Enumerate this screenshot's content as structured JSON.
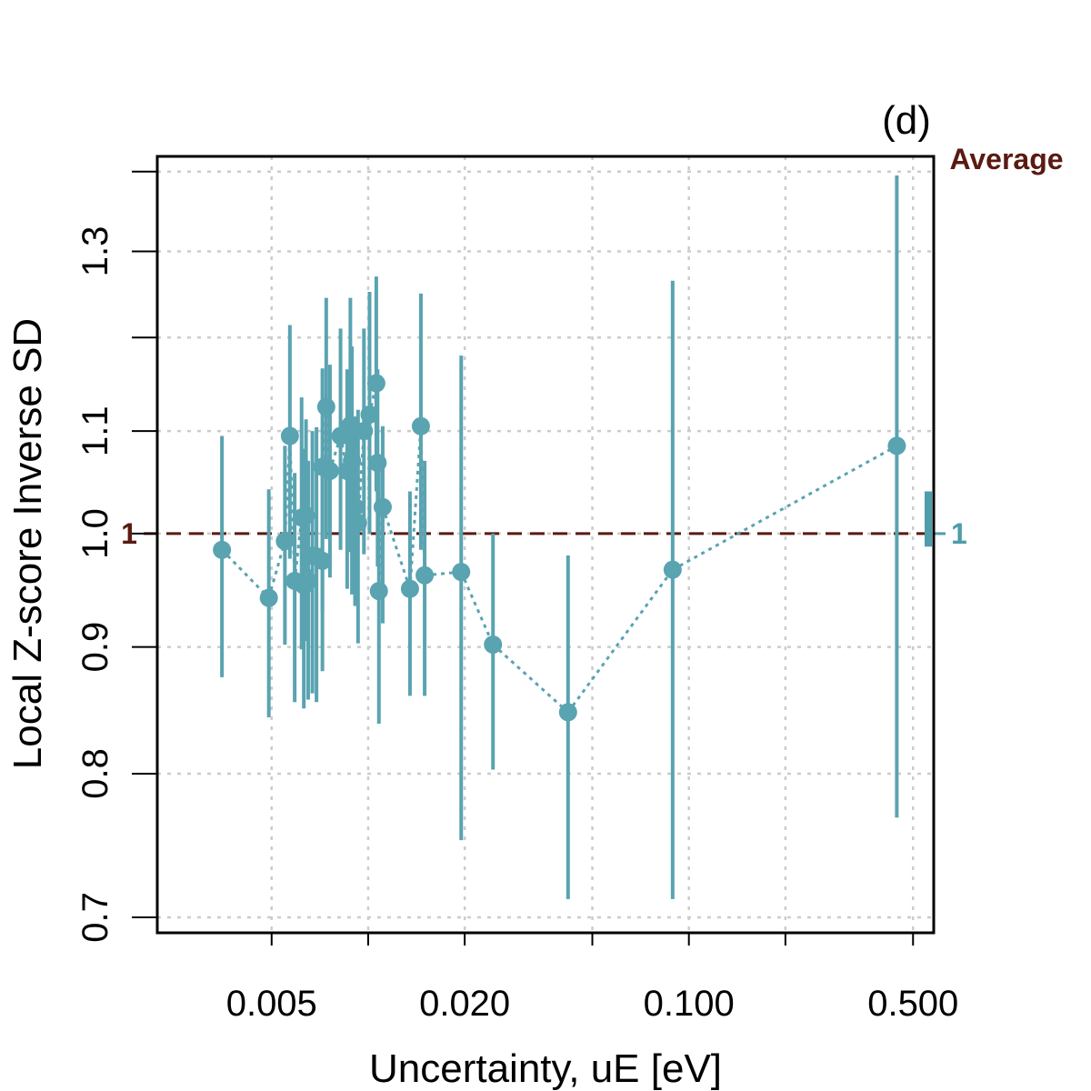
{
  "chart_data": {
    "type": "scatter",
    "panel_tag": "(d)",
    "xlabel": "Uncertainty, uE [eV]",
    "ylabel": "Local Z-score Inverse SD",
    "x_scale": "log",
    "y_scale": "log",
    "xlim": [
      0.0022,
      0.58
    ],
    "ylim": [
      0.69,
      1.42
    ],
    "x_ticks": [
      0.005,
      0.01,
      0.02,
      0.05,
      0.1,
      0.2,
      0.5
    ],
    "x_tick_labels": [
      "0.005",
      "",
      "0.020",
      "",
      "0.100",
      "",
      "0.500"
    ],
    "y_ticks": [
      0.7,
      0.8,
      0.9,
      1.0,
      1.1,
      1.2,
      1.3,
      1.4
    ],
    "y_tick_labels": [
      "0.7",
      "0.8",
      "0.9",
      "1.0",
      "1.1",
      "",
      "1.3",
      ""
    ],
    "grid": true,
    "reference_line": {
      "y": 1.0,
      "label": "1",
      "color": "#5a1a12",
      "style": "dashed"
    },
    "average": {
      "label": "Average",
      "value": 1.0,
      "value_label": "1",
      "lo": 0.988,
      "hi": 1.04,
      "color": "#4f9cab"
    },
    "series": [
      {
        "color": "#5aa3b1",
        "line_style": "dotted",
        "points": [
          {
            "x": 0.0035,
            "y": 0.985,
            "lo": 0.875,
            "hi": 1.095
          },
          {
            "x": 0.0049,
            "y": 0.942,
            "lo": 0.843,
            "hi": 1.042
          },
          {
            "x": 0.0055,
            "y": 0.993,
            "lo": 0.902,
            "hi": 1.085
          },
          {
            "x": 0.0057,
            "y": 1.095,
            "lo": 0.977,
            "hi": 1.214
          },
          {
            "x": 0.0059,
            "y": 0.957,
            "lo": 0.855,
            "hi": 1.058
          },
          {
            "x": 0.0062,
            "y": 1.015,
            "lo": 0.898,
            "hi": 1.135
          },
          {
            "x": 0.0063,
            "y": 0.953,
            "lo": 0.85,
            "hi": 1.082
          },
          {
            "x": 0.0064,
            "y": 1.017,
            "lo": 0.905,
            "hi": 1.112
          },
          {
            "x": 0.0065,
            "y": 0.957,
            "lo": 0.857,
            "hi": 1.07
          },
          {
            "x": 0.0067,
            "y": 0.98,
            "lo": 0.862,
            "hi": 1.1
          },
          {
            "x": 0.0069,
            "y": 0.979,
            "lo": 0.855,
            "hi": 1.104
          },
          {
            "x": 0.0072,
            "y": 0.975,
            "lo": 0.88,
            "hi": 1.075
          },
          {
            "x": 0.0072,
            "y": 1.064,
            "lo": 0.93,
            "hi": 1.166
          },
          {
            "x": 0.0074,
            "y": 1.125,
            "lo": 0.995,
            "hi": 1.245
          },
          {
            "x": 0.0076,
            "y": 1.06,
            "lo": 0.96,
            "hi": 1.17
          },
          {
            "x": 0.0082,
            "y": 1.095,
            "lo": 0.985,
            "hi": 1.21
          },
          {
            "x": 0.0086,
            "y": 1.06,
            "lo": 0.95,
            "hi": 1.165
          },
          {
            "x": 0.0088,
            "y": 1.106,
            "lo": 0.983,
            "hi": 1.245
          },
          {
            "x": 0.0089,
            "y": 1.07,
            "lo": 0.945,
            "hi": 1.19
          },
          {
            "x": 0.0091,
            "y": 1.025,
            "lo": 0.935,
            "hi": 1.115
          },
          {
            "x": 0.0093,
            "y": 1.01,
            "lo": 0.903,
            "hi": 1.122
          },
          {
            "x": 0.0097,
            "y": 1.1,
            "lo": 0.981,
            "hi": 1.21
          },
          {
            "x": 0.0101,
            "y": 1.117,
            "lo": 1.0,
            "hi": 1.252
          },
          {
            "x": 0.0106,
            "y": 1.15,
            "lo": 1.04,
            "hi": 1.27
          },
          {
            "x": 0.0107,
            "y": 1.068,
            "lo": 0.97,
            "hi": 1.165
          },
          {
            "x": 0.0108,
            "y": 0.948,
            "lo": 0.838,
            "hi": 1.06
          },
          {
            "x": 0.0111,
            "y": 1.025,
            "lo": 0.92,
            "hi": 1.105
          },
          {
            "x": 0.0135,
            "y": 0.95,
            "lo": 0.86,
            "hi": 1.04
          },
          {
            "x": 0.0146,
            "y": 1.105,
            "lo": 0.985,
            "hi": 1.25
          },
          {
            "x": 0.015,
            "y": 0.962,
            "lo": 0.86,
            "hi": 1.07
          },
          {
            "x": 0.0195,
            "y": 0.965,
            "lo": 0.752,
            "hi": 1.18
          },
          {
            "x": 0.0245,
            "y": 0.902,
            "lo": 0.803,
            "hi": 1.0
          },
          {
            "x": 0.042,
            "y": 0.847,
            "lo": 0.712,
            "hi": 0.98
          },
          {
            "x": 0.089,
            "y": 0.967,
            "lo": 0.712,
            "hi": 1.265
          },
          {
            "x": 0.445,
            "y": 1.085,
            "lo": 0.768,
            "hi": 1.395
          }
        ]
      }
    ]
  }
}
